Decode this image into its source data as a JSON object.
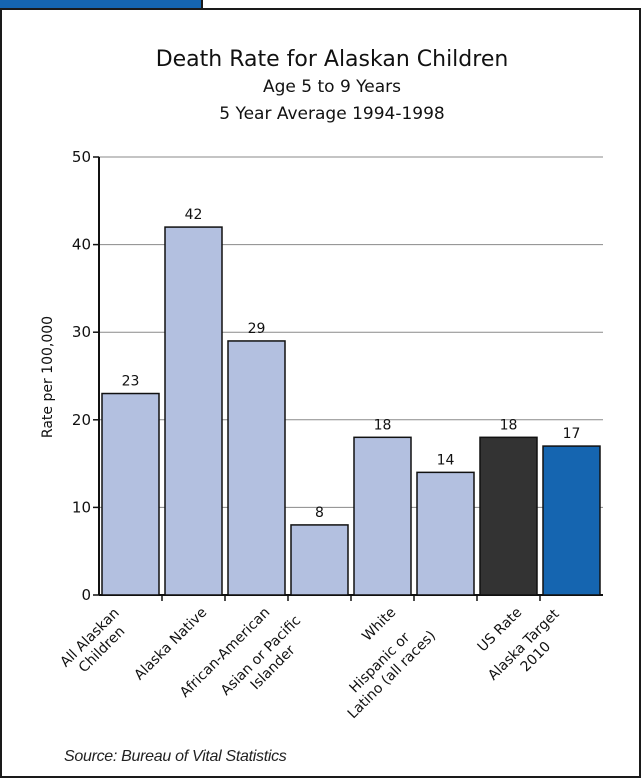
{
  "chart_data": {
    "type": "bar",
    "title": "Death Rate for Alaskan Children",
    "subtitle_lines": [
      "Age 5 to 9 Years",
      "5 Year Average 1994-1998"
    ],
    "ylabel": "Rate per 100,000",
    "xlabel": "",
    "ylim": [
      0,
      50
    ],
    "yticks": [
      0,
      10,
      20,
      30,
      40,
      50
    ],
    "grid": true,
    "categories": [
      [
        "All Alaskan",
        "Children"
      ],
      [
        "Alaska Native"
      ],
      [
        "African-American"
      ],
      [
        "Asian or Pacific",
        "Islander"
      ],
      [
        "White"
      ],
      [
        "Hispanic or",
        "Latino (all races)"
      ],
      [
        "US Rate"
      ],
      [
        "Alaska Target",
        "2010"
      ]
    ],
    "values": [
      23,
      42,
      29,
      8,
      18,
      14,
      18,
      17
    ],
    "bar_colors": [
      "#b3c0e0",
      "#b3c0e0",
      "#b3c0e0",
      "#b3c0e0",
      "#b3c0e0",
      "#b3c0e0",
      "#333333",
      "#1565b0"
    ]
  },
  "source": "Source: Bureau of Vital Statistics",
  "colors": {
    "accent_tab": "#1565b0",
    "bar_default": "#b3c0e0",
    "bar_us": "#333333",
    "bar_target": "#1565b0"
  }
}
